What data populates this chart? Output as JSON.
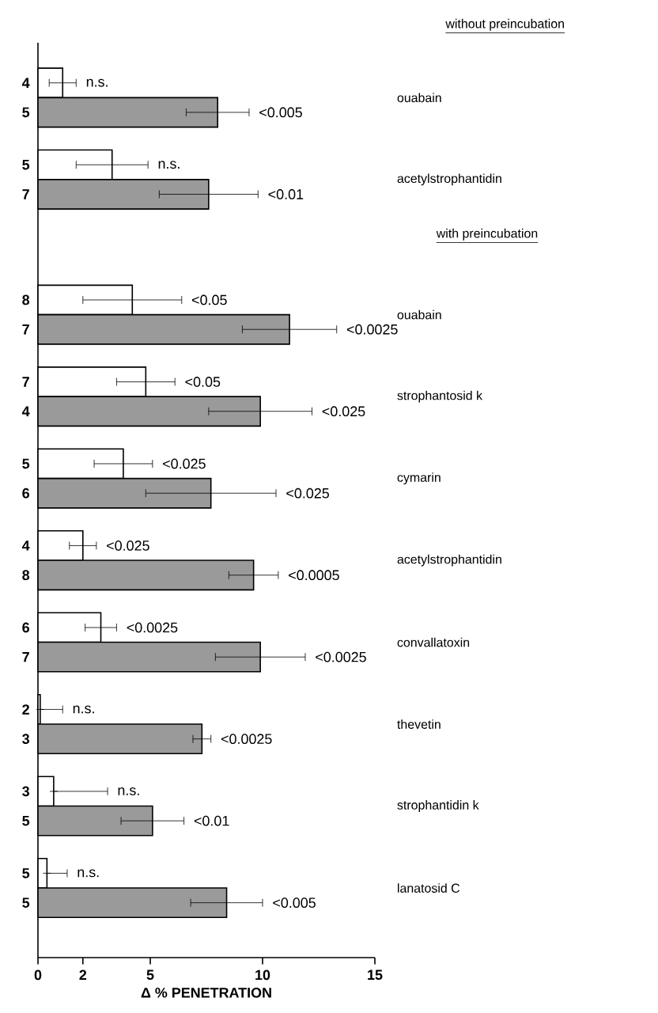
{
  "chart_data": {
    "type": "bar",
    "orientation": "horizontal",
    "categories": [
      "ouabain",
      "acetylstrophantidin",
      "ouabain",
      "strophantosid k",
      "cymarin",
      "acetylstrophantidin",
      "convallatoxin",
      "thevetin",
      "strophantidin k",
      "lanatosid C"
    ],
    "series": [
      {
        "color": "#ffffff",
        "values": [
          1.1,
          3.3,
          4.2,
          4.8,
          3.8,
          2.0,
          2.8,
          0.1,
          0.7,
          0.4
        ],
        "errors": [
          0.6,
          1.6,
          2.2,
          1.3,
          1.3,
          0.6,
          0.7,
          [
            0.1,
            1.1
          ],
          [
            0.7,
            3.1
          ],
          [
            0.4,
            1.3
          ]
        ]
      },
      {
        "color": "#9a9a9a",
        "values": [
          8.0,
          7.6,
          11.2,
          9.9,
          7.7,
          9.6,
          9.9,
          7.3,
          5.1,
          8.4
        ],
        "errors": [
          1.4,
          2.2,
          2.1,
          2.3,
          2.9,
          1.1,
          2.0,
          0.4,
          1.4,
          1.6
        ]
      }
    ],
    "xlim": [
      0,
      15
    ],
    "xticks": [
      0,
      2,
      5,
      10,
      15
    ],
    "xlabel": "Δ % PENETRATION",
    "annotations": [
      "without preincubation",
      "with preincubation",
      "4",
      "5",
      "5",
      "7",
      "8",
      "7",
      "7",
      "4",
      "5",
      "6",
      "4",
      "8",
      "6",
      "7",
      "2",
      "3",
      "3",
      "5",
      "5",
      "5",
      "n.s.",
      "<0.005",
      "n.s.",
      "<0.01",
      "<0.05",
      "<0.0025",
      "<0.05",
      "<0.025",
      "<0.025",
      "<0.025",
      "<0.025",
      "<0.0005",
      "<0.0025",
      "<0.0025",
      "n.s.",
      "<0.0025",
      "n.s.",
      "<0.01",
      "n.s.",
      "<0.005"
    ]
  }
}
